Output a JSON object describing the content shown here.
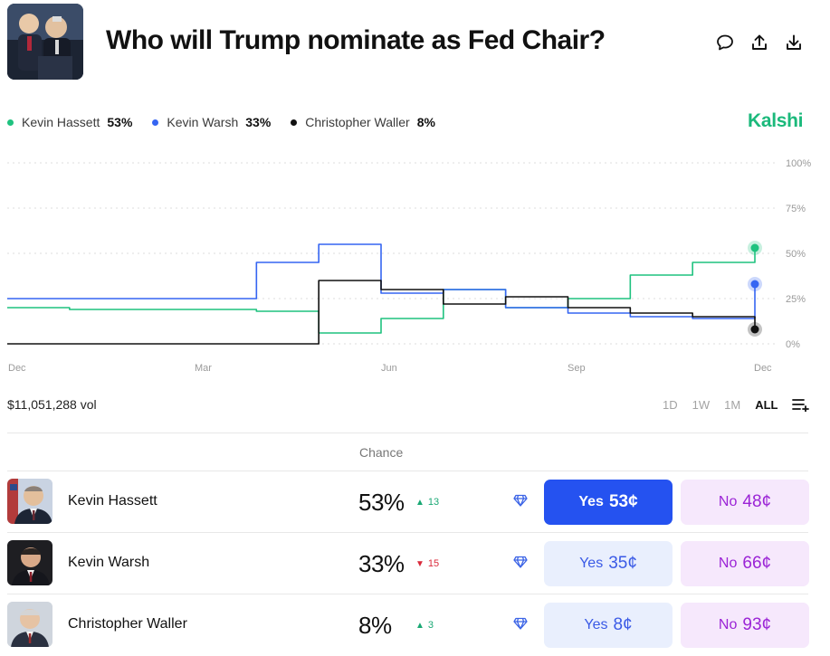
{
  "header": {
    "title": "Who will Trump nominate as Fed Chair?",
    "icons": [
      "comment-icon",
      "share-icon",
      "download-icon"
    ]
  },
  "legend": [
    {
      "name": "Kevin Hassett",
      "pct": "53%",
      "color": "#1fc27f"
    },
    {
      "name": "Kevin Warsh",
      "pct": "33%",
      "color": "#3565f2"
    },
    {
      "name": "Christopher Waller",
      "pct": "8%",
      "color": "#111111"
    }
  ],
  "brand": "Kalshi",
  "chart_data": {
    "type": "line",
    "x_ticks": [
      "Dec",
      "Mar",
      "Jun",
      "Sep",
      "Dec"
    ],
    "y_ticks": [
      "100%",
      "75%",
      "50%",
      "25%",
      "0%"
    ],
    "ylim": [
      0,
      100
    ],
    "grid": true,
    "legend_placement": "top-left",
    "series": [
      {
        "name": "Kevin Hassett",
        "color": "#1fc27f",
        "x": [
          "Dec",
          "Jan",
          "Feb",
          "Mar",
          "Apr",
          "May",
          "Jun",
          "Jul",
          "Aug",
          "Sep",
          "Oct",
          "Nov",
          "Dec"
        ],
        "values": [
          20,
          19,
          19,
          19,
          18,
          6,
          14,
          30,
          20,
          25,
          38,
          45,
          53
        ]
      },
      {
        "name": "Kevin Warsh",
        "color": "#3565f2",
        "x": [
          "Dec",
          "Jan",
          "Feb",
          "Mar",
          "Apr",
          "May",
          "Jun",
          "Jul",
          "Aug",
          "Sep",
          "Oct",
          "Nov",
          "Dec"
        ],
        "values": [
          25,
          25,
          25,
          25,
          45,
          55,
          28,
          30,
          20,
          17,
          15,
          14,
          33
        ]
      },
      {
        "name": "Christopher Waller",
        "color": "#111111",
        "x": [
          "Dec",
          "Jan",
          "Feb",
          "Mar",
          "Apr",
          "May",
          "Jun",
          "Jul",
          "Aug",
          "Sep",
          "Oct",
          "Nov",
          "Dec"
        ],
        "values": [
          0,
          0,
          0,
          0,
          0,
          35,
          30,
          22,
          26,
          20,
          17,
          15,
          8
        ]
      }
    ]
  },
  "volume": "$11,051,288 vol",
  "ranges": [
    "1D",
    "1W",
    "1M",
    "ALL"
  ],
  "active_range": "ALL",
  "table": {
    "column_header": "Chance",
    "rows": [
      {
        "name": "Kevin Hassett",
        "chance": "53%",
        "delta": "13",
        "delta_dir": "up",
        "yes_label": "Yes",
        "yes_price": "53¢",
        "no_label": "No",
        "no_price": "48¢"
      },
      {
        "name": "Kevin Warsh",
        "chance": "33%",
        "delta": "15",
        "delta_dir": "down",
        "yes_label": "Yes",
        "yes_price": "35¢",
        "no_label": "No",
        "no_price": "66¢"
      },
      {
        "name": "Christopher Waller",
        "chance": "8%",
        "delta": "3",
        "delta_dir": "up",
        "yes_label": "Yes",
        "yes_price": "8¢",
        "no_label": "No",
        "no_price": "93¢"
      }
    ]
  }
}
